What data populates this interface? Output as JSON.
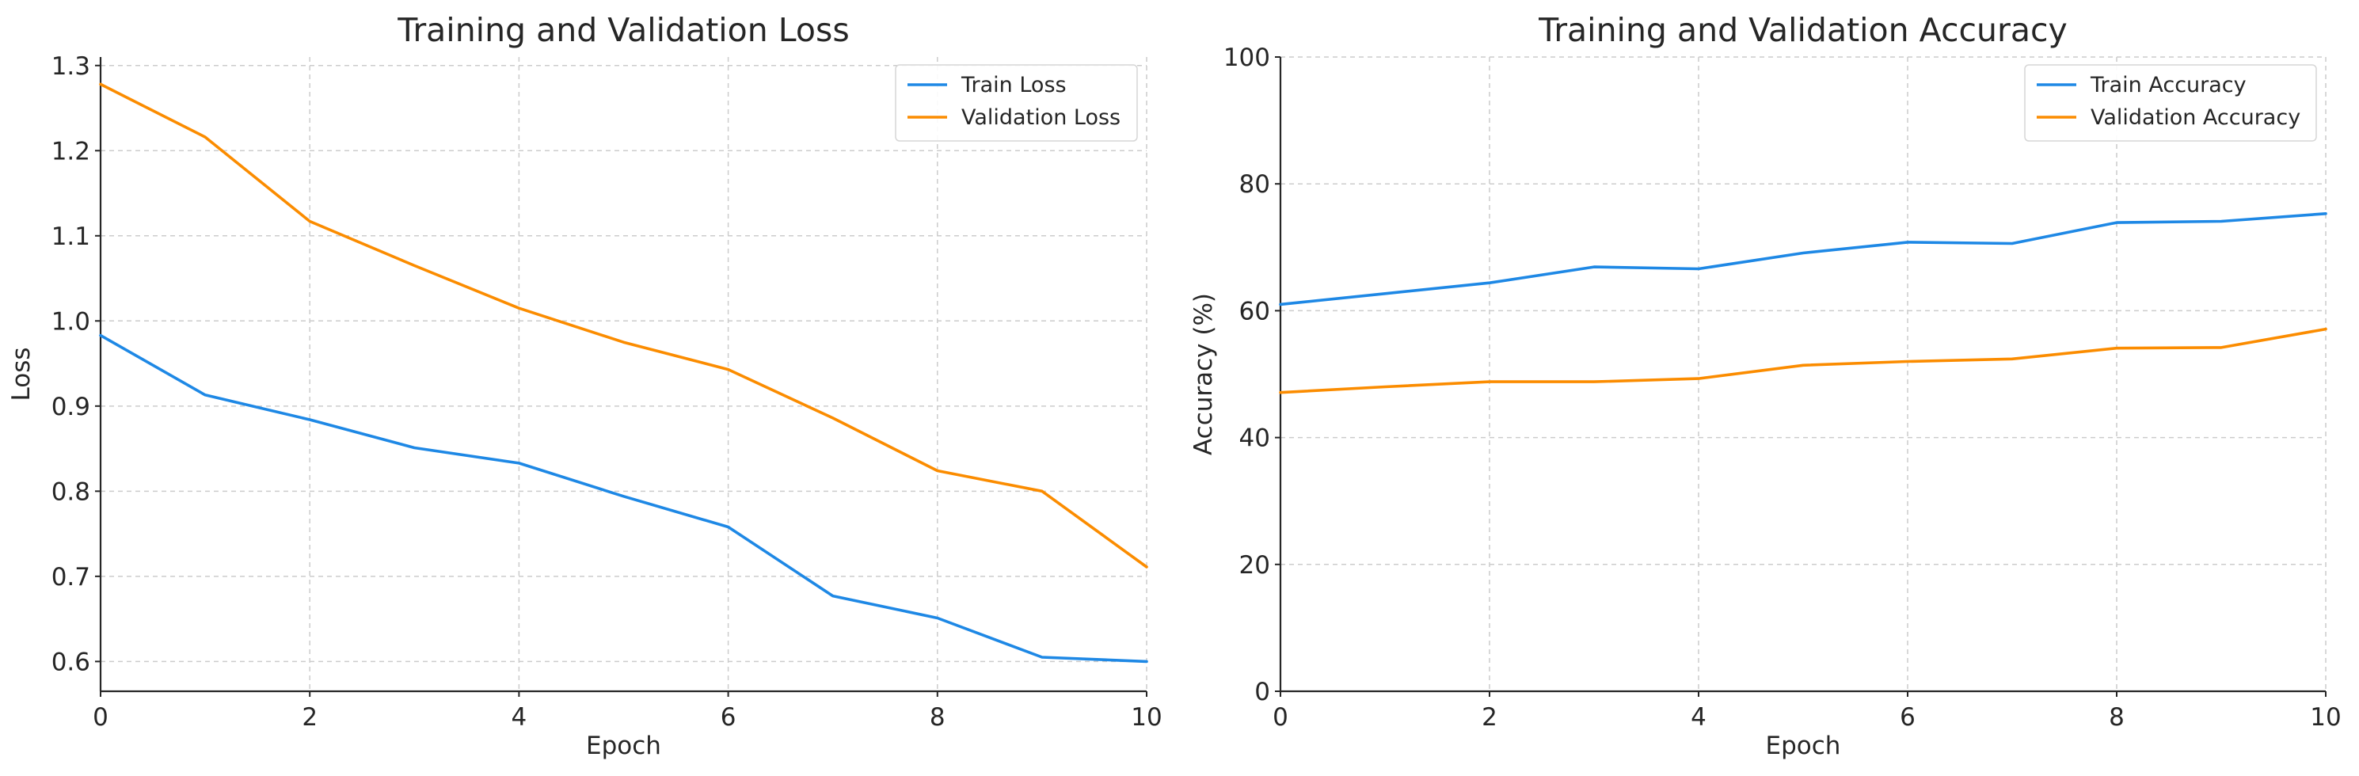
{
  "chart_data": [
    {
      "type": "line",
      "title": "Training and Validation Loss",
      "xlabel": "Epoch",
      "ylabel": "Loss",
      "xlim": [
        0,
        10
      ],
      "ylim": [
        0.565,
        1.31
      ],
      "xticks": [
        0,
        2,
        4,
        6,
        8,
        10
      ],
      "yticks": [
        0.6,
        0.7,
        0.8,
        0.9,
        1.0,
        1.1,
        1.2,
        1.3
      ],
      "ytick_decimals": 1,
      "grid": true,
      "legend_position": "top-right",
      "x": [
        0,
        1,
        2,
        3,
        4,
        5,
        6,
        7,
        8,
        9,
        10
      ],
      "series": [
        {
          "name": "Train Loss",
          "color": "#1E88E5",
          "values": [
            0.983,
            0.913,
            0.884,
            0.851,
            0.833,
            0.794,
            0.758,
            0.677,
            0.651,
            0.605,
            0.6
          ]
        },
        {
          "name": "Validation Loss",
          "color": "#FB8C00",
          "values": [
            1.278,
            1.216,
            1.117,
            1.065,
            1.015,
            0.975,
            0.943,
            0.886,
            0.824,
            0.8,
            0.711
          ]
        }
      ]
    },
    {
      "type": "line",
      "title": "Training and Validation Accuracy",
      "xlabel": "Epoch",
      "ylabel": "Accuracy (%)",
      "xlim": [
        0,
        10
      ],
      "ylim": [
        0,
        100
      ],
      "xticks": [
        0,
        2,
        4,
        6,
        8,
        10
      ],
      "yticks": [
        0,
        20,
        40,
        60,
        80,
        100
      ],
      "ytick_decimals": 0,
      "grid": true,
      "legend_position": "top-right",
      "x": [
        0,
        1,
        2,
        3,
        4,
        5,
        6,
        7,
        8,
        9,
        10
      ],
      "series": [
        {
          "name": "Train Accuracy",
          "color": "#1E88E5",
          "values": [
            61.0,
            62.7,
            64.4,
            66.9,
            66.6,
            69.1,
            70.8,
            70.6,
            73.9,
            74.1,
            75.3
          ]
        },
        {
          "name": "Validation Accuracy",
          "color": "#FB8C00",
          "values": [
            47.1,
            48.0,
            48.8,
            48.8,
            49.3,
            51.4,
            52.0,
            52.4,
            54.1,
            54.2,
            57.1
          ]
        }
      ]
    }
  ]
}
